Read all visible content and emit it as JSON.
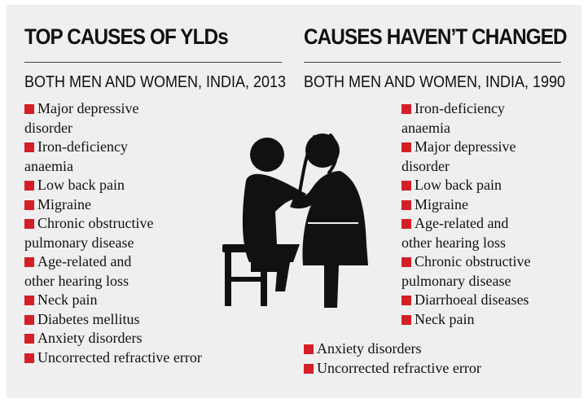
{
  "left": {
    "heading": "TOP CAUSES OF YLDs",
    "subheading": "BOTH MEN AND WOMEN, INDIA, 2013",
    "items": [
      {
        "line1": "Major depressive",
        "line2": "disorder"
      },
      {
        "line1": "Iron-deficiency",
        "line2": "anaemia"
      },
      {
        "line1": "Low back pain",
        "line2": ""
      },
      {
        "line1": "Migraine",
        "line2": ""
      },
      {
        "line1": "Chronic obstructive",
        "line2": "pulmonary disease"
      },
      {
        "line1": "Age-related and",
        "line2": "other hearing loss"
      },
      {
        "line1": "Neck pain",
        "line2": ""
      },
      {
        "line1": "Diabetes mellitus",
        "line2": ""
      },
      {
        "line1": "Anxiety disorders",
        "line2": ""
      },
      {
        "line1": "Uncorrected refractive error",
        "line2": ""
      }
    ]
  },
  "right": {
    "heading": "CAUSES HAVEN’T CHANGED",
    "subheading": "BOTH MEN AND WOMEN, INDIA, 1990",
    "items": [
      {
        "line1": "Iron-deficiency",
        "line2": "anaemia"
      },
      {
        "line1": "Major depressive",
        "line2": "disorder"
      },
      {
        "line1": "Low back pain",
        "line2": ""
      },
      {
        "line1": "Migraine",
        "line2": ""
      },
      {
        "line1": "Age-related and",
        "line2": "other hearing loss"
      },
      {
        "line1": "Chronic obstructive",
        "line2": "pulmonary disease"
      },
      {
        "line1": "Diarrhoeal diseases",
        "line2": ""
      },
      {
        "line1": "Neck pain",
        "line2": ""
      }
    ],
    "bottom_items": [
      {
        "line1": "Anxiety disorders"
      },
      {
        "line1": "Uncorrected refractive error"
      }
    ]
  },
  "illustration": {
    "icon": "doctor-patient-stethoscope-icon"
  },
  "colors": {
    "bullet": "#d41f26",
    "background": "#efefef",
    "text": "#111111"
  }
}
